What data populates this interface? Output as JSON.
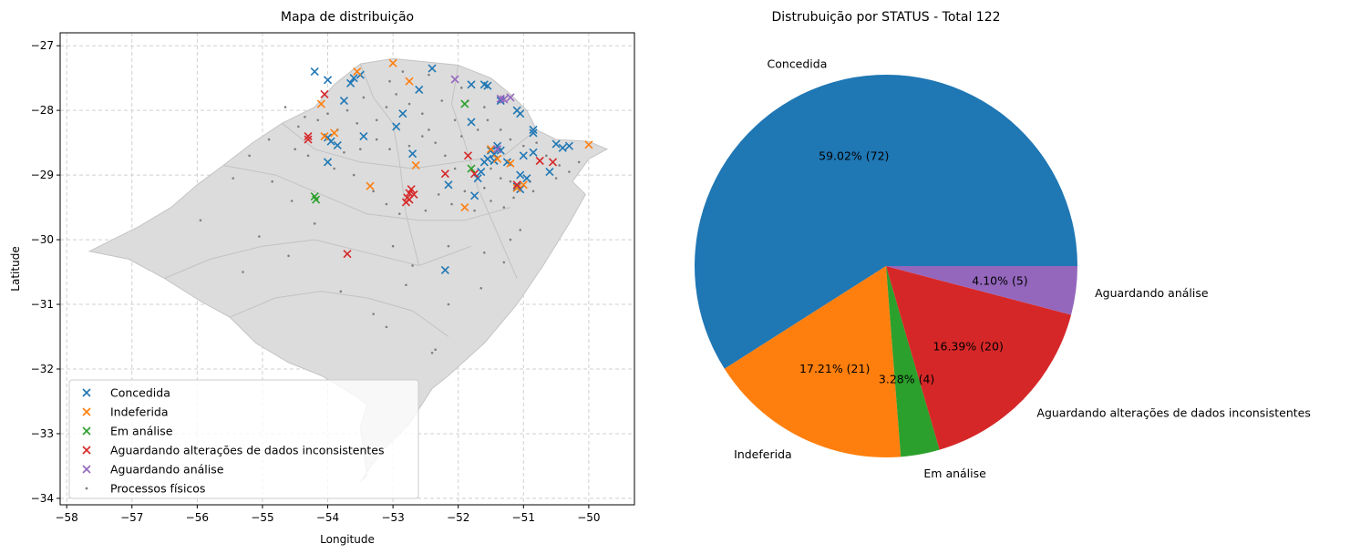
{
  "chart_data": [
    {
      "type": "scatter",
      "title": "Mapa de distribuição",
      "xlabel": "Longitude",
      "ylabel": "Latitude",
      "xlim": [
        -58.1,
        -49.3
      ],
      "ylim": [
        -34.1,
        -26.8
      ],
      "xticks": [
        -58,
        -57,
        -56,
        -55,
        -54,
        -53,
        -52,
        -51,
        -50
      ],
      "yticks": [
        -27,
        -28,
        -29,
        -30,
        -31,
        -32,
        -33,
        -34
      ],
      "grid": true,
      "legend_position": "lower-left",
      "basemap_outline": [
        [
          -57.65,
          -30.18
        ],
        [
          -57.3,
          -30.0
        ],
        [
          -56.9,
          -29.8
        ],
        [
          -56.4,
          -29.5
        ],
        [
          -56.0,
          -29.15
        ],
        [
          -55.6,
          -28.85
        ],
        [
          -55.15,
          -28.5
        ],
        [
          -54.7,
          -28.2
        ],
        [
          -54.2,
          -27.95
        ],
        [
          -53.9,
          -27.6
        ],
        [
          -53.5,
          -27.28
        ],
        [
          -53.0,
          -27.2
        ],
        [
          -52.5,
          -27.25
        ],
        [
          -52.0,
          -27.3
        ],
        [
          -51.5,
          -27.5
        ],
        [
          -51.2,
          -27.75
        ],
        [
          -50.95,
          -28.0
        ],
        [
          -50.8,
          -28.3
        ],
        [
          -50.5,
          -28.45
        ],
        [
          -50.0,
          -28.48
        ],
        [
          -49.72,
          -28.6
        ],
        [
          -50.0,
          -28.75
        ],
        [
          -50.25,
          -29.1
        ],
        [
          -50.05,
          -29.3
        ],
        [
          -50.3,
          -29.75
        ],
        [
          -50.7,
          -30.4
        ],
        [
          -51.1,
          -31.0
        ],
        [
          -51.6,
          -31.6
        ],
        [
          -52.15,
          -32.1
        ],
        [
          -52.4,
          -32.3
        ],
        [
          -52.75,
          -32.85
        ],
        [
          -53.15,
          -33.25
        ],
        [
          -53.4,
          -33.6
        ],
        [
          -53.5,
          -33.75
        ],
        [
          -53.4,
          -33.65
        ],
        [
          -53.5,
          -32.9
        ],
        [
          -53.4,
          -32.55
        ],
        [
          -53.6,
          -32.4
        ],
        [
          -54.1,
          -32.1
        ],
        [
          -54.6,
          -31.9
        ],
        [
          -55.1,
          -31.6
        ],
        [
          -55.5,
          -31.2
        ],
        [
          -55.95,
          -30.95
        ],
        [
          -56.5,
          -30.6
        ],
        [
          -57.05,
          -30.3
        ],
        [
          -57.65,
          -30.18
        ]
      ],
      "series": [
        {
          "name": "Concedida",
          "color": "#1f77b4",
          "marker": "x",
          "points": [
            [
              -54.2,
              -27.4
            ],
            [
              -54.0,
              -27.53
            ],
            [
              -53.65,
              -27.58
            ],
            [
              -53.6,
              -27.5
            ],
            [
              -53.5,
              -27.45
            ],
            [
              -53.75,
              -27.85
            ],
            [
              -54.0,
              -28.42
            ],
            [
              -53.95,
              -28.48
            ],
            [
              -53.85,
              -28.54
            ],
            [
              -53.45,
              -28.4
            ],
            [
              -54.0,
              -28.8
            ],
            [
              -52.95,
              -28.25
            ],
            [
              -52.85,
              -28.05
            ],
            [
              -52.6,
              -27.68
            ],
            [
              -52.4,
              -27.35
            ],
            [
              -51.8,
              -27.6
            ],
            [
              -51.6,
              -27.6
            ],
            [
              -51.55,
              -27.62
            ],
            [
              -51.8,
              -28.18
            ],
            [
              -51.35,
              -27.85
            ],
            [
              -51.1,
              -28.0
            ],
            [
              -51.05,
              -28.05
            ],
            [
              -50.85,
              -28.3
            ],
            [
              -50.85,
              -28.35
            ],
            [
              -51.4,
              -28.55
            ],
            [
              -51.45,
              -28.68
            ],
            [
              -51.5,
              -28.62
            ],
            [
              -51.55,
              -28.75
            ],
            [
              -51.6,
              -28.8
            ],
            [
              -51.45,
              -28.78
            ],
            [
              -51.35,
              -28.62
            ],
            [
              -51.25,
              -28.8
            ],
            [
              -51.0,
              -28.7
            ],
            [
              -50.85,
              -28.65
            ],
            [
              -50.5,
              -28.52
            ],
            [
              -50.4,
              -28.58
            ],
            [
              -50.3,
              -28.55
            ],
            [
              -50.6,
              -28.95
            ],
            [
              -50.95,
              -29.05
            ],
            [
              -51.05,
              -29.0
            ],
            [
              -51.1,
              -29.18
            ],
            [
              -51.05,
              -29.22
            ],
            [
              -51.7,
              -29.05
            ],
            [
              -51.65,
              -28.95
            ],
            [
              -51.75,
              -29.32
            ],
            [
              -52.15,
              -29.15
            ],
            [
              -52.7,
              -28.67
            ],
            [
              -52.2,
              -30.47
            ]
          ]
        },
        {
          "name": "Indeferida",
          "color": "#ff7f0e",
          "marker": "x",
          "points": [
            [
              -53.55,
              -27.4
            ],
            [
              -53.0,
              -27.27
            ],
            [
              -52.75,
              -27.55
            ],
            [
              -54.1,
              -27.9
            ],
            [
              -54.05,
              -28.4
            ],
            [
              -53.9,
              -28.35
            ],
            [
              -53.35,
              -29.17
            ],
            [
              -52.65,
              -28.85
            ],
            [
              -51.5,
              -28.6
            ],
            [
              -51.4,
              -28.75
            ],
            [
              -51.2,
              -28.82
            ],
            [
              -51.1,
              -29.2
            ],
            [
              -51.0,
              -29.15
            ],
            [
              -50.0,
              -28.53
            ],
            [
              -51.9,
              -29.5
            ]
          ]
        },
        {
          "name": "Em análise",
          "color": "#2ca02c",
          "marker": "x",
          "points": [
            [
              -54.2,
              -29.33
            ],
            [
              -54.18,
              -29.38
            ],
            [
              -51.9,
              -27.9
            ],
            [
              -51.8,
              -28.9
            ]
          ]
        },
        {
          "name": "Aguardando alterações de dados inconsistentes",
          "color": "#d62728",
          "marker": "x",
          "points": [
            [
              -54.3,
              -28.4
            ],
            [
              -54.3,
              -28.45
            ],
            [
              -54.05,
              -27.75
            ],
            [
              -52.8,
              -29.42
            ],
            [
              -52.78,
              -29.35
            ],
            [
              -52.75,
              -29.28
            ],
            [
              -52.72,
              -29.22
            ],
            [
              -52.68,
              -29.3
            ],
            [
              -52.75,
              -29.38
            ],
            [
              -52.2,
              -28.98
            ],
            [
              -51.85,
              -28.7
            ],
            [
              -51.75,
              -28.98
            ],
            [
              -50.75,
              -28.78
            ],
            [
              -50.55,
              -28.8
            ],
            [
              -51.1,
              -29.15
            ],
            [
              -53.7,
              -30.22
            ]
          ]
        },
        {
          "name": "Aguardando análise",
          "color": "#9467bd",
          "marker": "x",
          "points": [
            [
              -52.05,
              -27.52
            ],
            [
              -51.35,
              -27.82
            ],
            [
              -51.3,
              -27.83
            ],
            [
              -51.2,
              -27.8
            ],
            [
              -51.4,
              -28.6
            ]
          ]
        },
        {
          "name": "Processos físicos",
          "color": "#808080",
          "marker": "dot",
          "points": [
            [
              -54.65,
              -27.95
            ],
            [
              -54.35,
              -28.1
            ],
            [
              -54.0,
              -28.05
            ],
            [
              -53.85,
              -28.3
            ],
            [
              -53.7,
              -28.0
            ],
            [
              -53.55,
              -28.2
            ],
            [
              -53.25,
              -28.15
            ],
            [
              -53.1,
              -27.95
            ],
            [
              -52.95,
              -27.75
            ],
            [
              -52.75,
              -27.9
            ],
            [
              -52.55,
              -28.05
            ],
            [
              -52.45,
              -28.3
            ],
            [
              -52.35,
              -28.5
            ],
            [
              -52.2,
              -28.7
            ],
            [
              -52.05,
              -28.9
            ],
            [
              -51.95,
              -28.4
            ],
            [
              -51.7,
              -28.3
            ],
            [
              -51.55,
              -28.15
            ],
            [
              -51.35,
              -28.3
            ],
            [
              -51.2,
              -28.45
            ],
            [
              -51.0,
              -28.55
            ],
            [
              -50.8,
              -28.5
            ],
            [
              -50.65,
              -28.7
            ],
            [
              -50.45,
              -28.85
            ],
            [
              -50.3,
              -28.95
            ],
            [
              -50.15,
              -28.8
            ],
            [
              -50.9,
              -29.1
            ],
            [
              -51.15,
              -29.35
            ],
            [
              -51.3,
              -29.5
            ],
            [
              -51.5,
              -29.4
            ],
            [
              -51.6,
              -29.2
            ],
            [
              -51.9,
              -29.25
            ],
            [
              -52.1,
              -29.45
            ],
            [
              -52.3,
              -29.3
            ],
            [
              -52.5,
              -29.55
            ],
            [
              -52.9,
              -29.6
            ],
            [
              -53.1,
              -29.45
            ],
            [
              -53.3,
              -29.25
            ],
            [
              -53.6,
              -29.0
            ],
            [
              -53.9,
              -28.9
            ],
            [
              -54.3,
              -28.7
            ],
            [
              -54.5,
              -28.6
            ],
            [
              -54.9,
              -28.45
            ],
            [
              -55.2,
              -28.7
            ],
            [
              -55.45,
              -29.05
            ],
            [
              -55.95,
              -29.7
            ],
            [
              -55.3,
              -30.5
            ],
            [
              -54.6,
              -30.25
            ],
            [
              -54.2,
              -29.75
            ],
            [
              -53.0,
              -30.1
            ],
            [
              -52.7,
              -30.4
            ],
            [
              -52.15,
              -30.1
            ],
            [
              -51.6,
              -30.2
            ],
            [
              -51.2,
              -30.0
            ],
            [
              -51.05,
              -29.85
            ],
            [
              -51.3,
              -30.35
            ],
            [
              -51.65,
              -30.75
            ],
            [
              -52.15,
              -31.0
            ],
            [
              -52.35,
              -31.7
            ],
            [
              -52.4,
              -31.75
            ],
            [
              -53.1,
              -31.35
            ],
            [
              -53.3,
              -31.15
            ],
            [
              -53.8,
              -30.8
            ],
            [
              -52.8,
              -30.7
            ],
            [
              -54.55,
              -29.4
            ],
            [
              -55.05,
              -29.95
            ],
            [
              -54.85,
              -29.1
            ],
            [
              -53.45,
              -27.8
            ],
            [
              -53.05,
              -27.55
            ],
            [
              -52.85,
              -27.4
            ],
            [
              -52.45,
              -27.45
            ],
            [
              -52.25,
              -27.85
            ],
            [
              -51.95,
              -27.65
            ],
            [
              -51.6,
              -27.95
            ],
            [
              -51.5,
              -28.9
            ],
            [
              -51.35,
              -29.05
            ],
            [
              -51.2,
              -29.1
            ],
            [
              -50.85,
              -29.25
            ],
            [
              -50.5,
              -29.05
            ],
            [
              -51.75,
              -29.55
            ],
            [
              -52.55,
              -28.4
            ],
            [
              -52.75,
              -28.55
            ],
            [
              -53.05,
              -28.6
            ],
            [
              -53.25,
              -28.45
            ],
            [
              -53.5,
              -28.6
            ],
            [
              -53.75,
              -28.65
            ],
            [
              -54.15,
              -28.15
            ],
            [
              -54.45,
              -28.25
            ],
            [
              -52.05,
              -28.15
            ],
            [
              -51.85,
              -27.85
            ]
          ]
        }
      ]
    },
    {
      "type": "pie",
      "title": "Distrubuição por STATUS - Total 122",
      "total": 122,
      "slices": [
        {
          "label": "Concedida",
          "value": 72,
          "percent": "59.02%",
          "color": "#1f77b4",
          "pct_text": "59.02%  (72)"
        },
        {
          "label": "Indeferida",
          "value": 21,
          "percent": "17.21%",
          "color": "#ff7f0e",
          "pct_text": "17.21%  (21)"
        },
        {
          "label": "Em análise",
          "value": 4,
          "percent": "3.28%",
          "color": "#2ca02c",
          "pct_text": "3.28%  (4)"
        },
        {
          "label": "Aguardando alterações de dados inconsistentes",
          "value": 20,
          "percent": "16.39%",
          "color": "#d62728",
          "pct_text": "16.39%  (20)"
        },
        {
          "label": "Aguardando análise",
          "value": 5,
          "percent": "4.10%",
          "color": "#9467bd",
          "pct_text": "4.10%  (5)"
        }
      ]
    }
  ]
}
